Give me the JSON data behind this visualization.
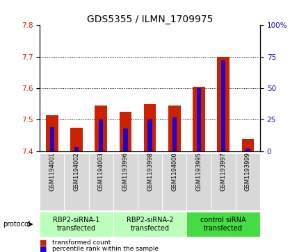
{
  "title": "GDS5355 / ILMN_1709975",
  "samples": [
    "GSM1194001",
    "GSM1194002",
    "GSM1194003",
    "GSM1193996",
    "GSM1193998",
    "GSM1194000",
    "GSM1193995",
    "GSM1193997",
    "GSM1193999"
  ],
  "transformed_count": [
    7.515,
    7.475,
    7.545,
    7.525,
    7.55,
    7.545,
    7.605,
    7.7,
    7.44
  ],
  "percentile_rank": [
    19,
    3,
    25,
    18,
    25,
    27,
    50,
    72,
    2
  ],
  "ylim_left": [
    7.4,
    7.8
  ],
  "ylim_right": [
    0,
    100
  ],
  "yticks_left": [
    7.4,
    7.5,
    7.6,
    7.7,
    7.8
  ],
  "yticks_right": [
    0,
    25,
    50,
    75,
    100
  ],
  "bar_color": "#cc2200",
  "percentile_color": "#2200cc",
  "protocol_groups": [
    {
      "label": "RBP2-siRNA-1\ntransfected",
      "start": 0,
      "end": 3,
      "color": "#bbffbb"
    },
    {
      "label": "RBP2-siRNA-2\ntransfected",
      "start": 3,
      "end": 6,
      "color": "#bbffbb"
    },
    {
      "label": "control siRNA\ntransfected",
      "start": 6,
      "end": 9,
      "color": "#44dd44"
    }
  ],
  "legend_items": [
    {
      "label": "transformed count",
      "color": "#cc2200"
    },
    {
      "label": "percentile rank within the sample",
      "color": "#2200cc"
    }
  ],
  "title_fontsize": 10,
  "tick_fontsize": 7.5,
  "sample_fontsize": 6,
  "protocol_fontsize": 7
}
